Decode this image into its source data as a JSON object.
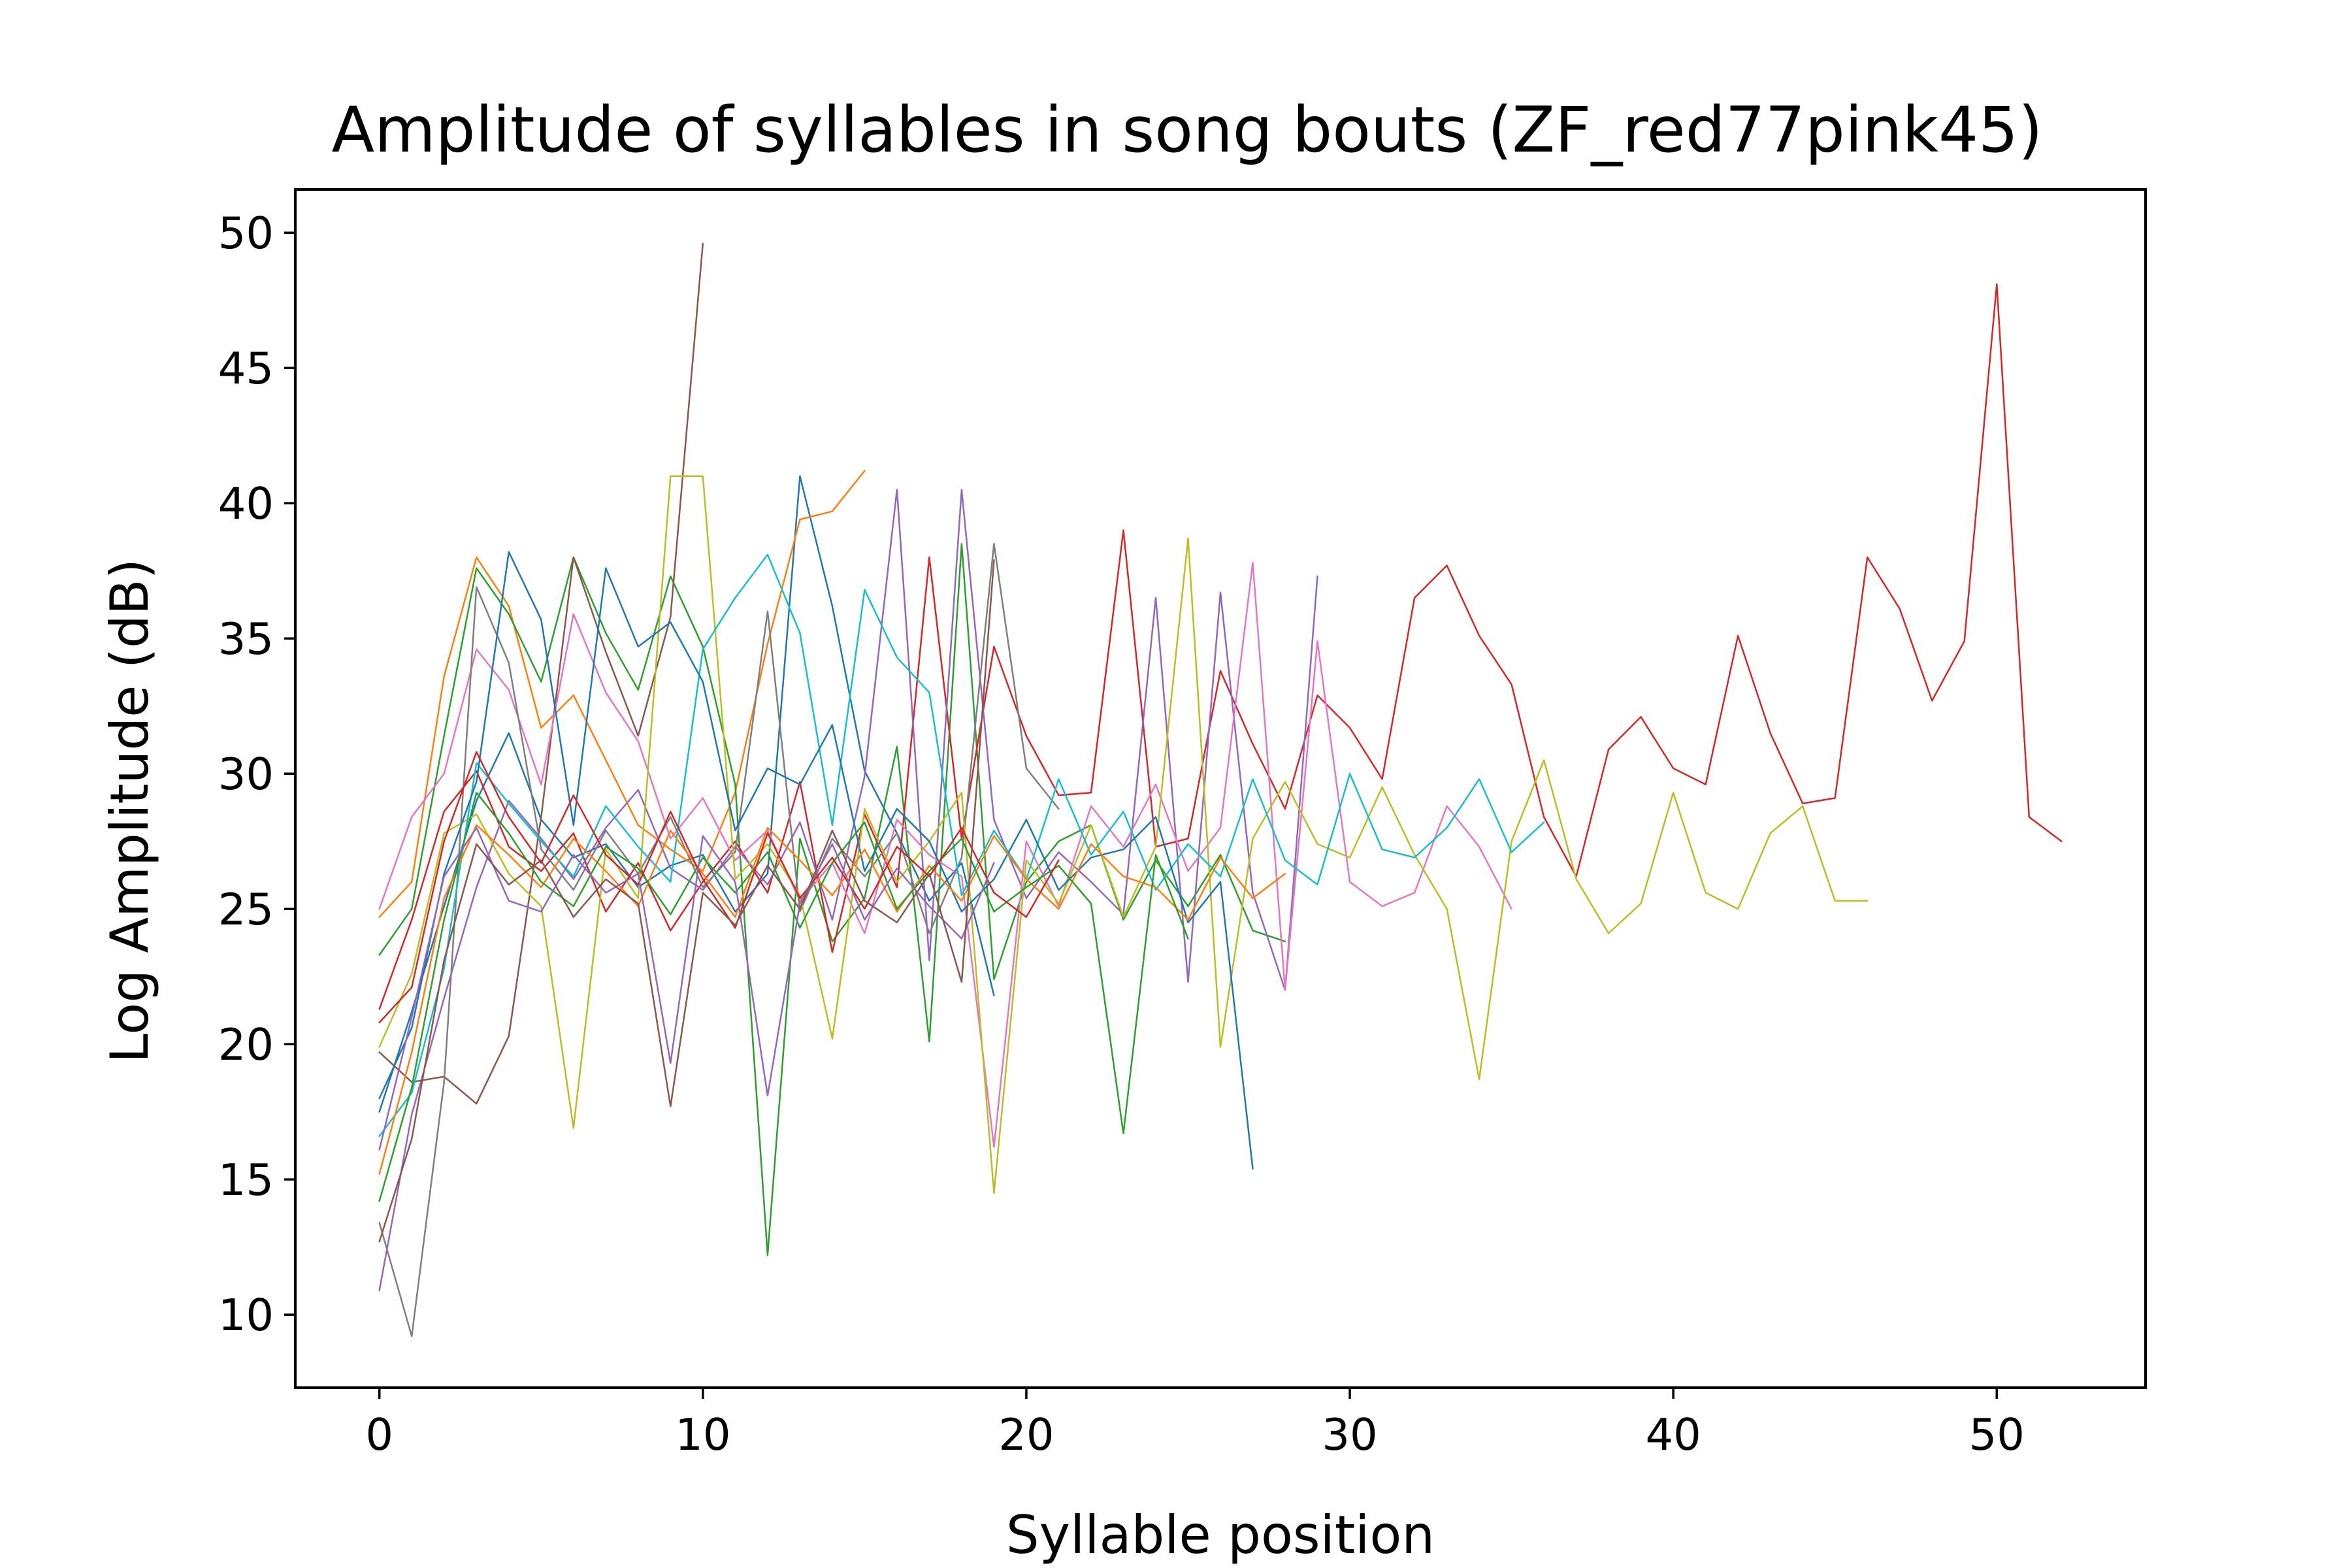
{
  "chart_data": {
    "type": "line",
    "title": "Amplitude of syllables in song bouts (ZF_red77pink45)",
    "xlabel": "Syllable position",
    "ylabel": "Log Amplitude (dB)",
    "xlim": [
      -2.6,
      54.6
    ],
    "ylim": [
      7.3,
      51.6
    ],
    "xticks": [
      0,
      10,
      20,
      30,
      40,
      50
    ],
    "yticks": [
      10,
      15,
      20,
      25,
      30,
      35,
      40,
      45,
      50
    ],
    "grid": false,
    "legend": "none",
    "colors": [
      "#1f77b4",
      "#ff7f0e",
      "#2ca02c",
      "#d62728",
      "#9467bd",
      "#8c564b",
      "#e377c2",
      "#7f7f7f",
      "#bcbd22",
      "#17becf"
    ],
    "series": [
      {
        "values": [
          17.5,
          21.2,
          25.1,
          29.0,
          31.5,
          28.3,
          26.9,
          27.4,
          25.8,
          26.6,
          27.0,
          24.9,
          26.3,
          41.0,
          36.2,
          30.1,
          27.8,
          25.3,
          26.7,
          21.8
        ]
      },
      {
        "values": [
          24.7,
          26.0,
          33.6,
          38.0,
          36.2,
          31.7,
          32.9,
          30.5,
          28.1,
          27.2,
          26.4,
          29.3,
          34.8,
          39.4,
          39.7,
          41.2
        ]
      },
      {
        "values": [
          23.3,
          25.0,
          31.4,
          37.6,
          35.9,
          33.4,
          38.0,
          35.2,
          33.1,
          37.3,
          34.7,
          29.6,
          12.2,
          27.6,
          23.8,
          25.4,
          31.0,
          20.1,
          38.5,
          22.4,
          26.0,
          27.5,
          28.1,
          24.6,
          26.8,
          25.1,
          27.0,
          24.2,
          23.8
        ]
      },
      {
        "values": [
          21.3,
          24.6,
          28.6,
          30.1,
          27.3,
          26.4,
          27.8,
          24.9,
          26.7,
          24.2,
          26.0,
          27.5,
          25.6,
          29.7,
          23.4,
          28.5,
          25.8,
          38.0,
          27.6,
          34.7,
          31.4,
          29.2,
          29.3,
          39.0,
          27.3,
          27.6,
          33.8,
          31.1,
          28.7,
          32.9,
          31.7,
          29.8,
          36.5,
          37.7,
          35.1,
          33.3,
          28.4,
          26.2,
          30.9,
          32.1,
          30.2,
          29.6,
          35.1,
          31.5,
          28.9,
          29.1,
          38.0,
          36.1,
          32.7,
          34.9,
          48.1,
          28.4,
          27.5
        ]
      },
      {
        "values": [
          10.9,
          17.4,
          21.7,
          25.8,
          29.0,
          27.6,
          26.1,
          28.0,
          29.4,
          26.5,
          25.7,
          27.3,
          25.9,
          28.2,
          24.6,
          29.9,
          40.5,
          23.1,
          40.5,
          28.3,
          25.4,
          27.1,
          26.0,
          24.8,
          36.5,
          22.3,
          36.7,
          25.6,
          22.0,
          37.3
        ]
      },
      {
        "values": [
          19.7,
          18.6,
          18.8,
          17.8,
          20.3,
          28.4,
          38.0,
          34.5,
          31.4,
          35.8,
          49.6
        ]
      },
      {
        "values": [
          25.0,
          28.4,
          30.0,
          34.6,
          33.1,
          29.6,
          35.9,
          33.0,
          31.2,
          27.6,
          29.1,
          26.8,
          27.9,
          25.3,
          26.7,
          24.1,
          28.3,
          27.0,
          26.2,
          16.2,
          27.5,
          25.1,
          28.8,
          27.3,
          29.6,
          26.4,
          28.0,
          37.8,
          22.0,
          34.9,
          26.0,
          25.1,
          25.6,
          28.8,
          27.3,
          25.0
        ]
      },
      {
        "values": [
          13.4,
          9.2,
          18.6,
          36.9,
          34.1,
          27.2,
          25.7,
          27.9,
          26.3,
          28.4,
          25.8,
          27.1,
          36.0,
          24.9,
          27.6,
          26.2,
          27.8,
          24.1,
          26.9,
          38.5,
          30.2,
          28.7
        ]
      },
      {
        "values": [
          19.9,
          22.6,
          27.8,
          28.5,
          26.3,
          25.1,
          16.9,
          27.2,
          25.4,
          41.0,
          41.0,
          26.1,
          27.4,
          25.5,
          20.2,
          28.7,
          26.0,
          27.5,
          29.3,
          14.5,
          26.8,
          25.2,
          28.1,
          24.7,
          27.3,
          38.7,
          19.9,
          27.6,
          29.7,
          27.4,
          26.9,
          29.5,
          27.0,
          25.0,
          18.7,
          27.5,
          30.5,
          26.1,
          24.1,
          25.2,
          29.3,
          25.6,
          25.0,
          27.8,
          28.8,
          25.3,
          25.3
        ]
      },
      {
        "values": [
          16.6,
          18.2,
          22.8,
          30.4,
          28.9,
          27.5,
          26.2,
          28.8,
          27.3,
          26.0,
          34.6,
          36.5,
          38.1,
          35.2,
          28.1,
          36.8,
          34.3,
          33.0,
          25.5,
          27.9,
          26.1,
          29.8,
          27.0,
          28.6,
          25.7,
          27.4,
          26.2,
          29.8,
          26.8,
          25.9,
          30.0,
          27.2,
          26.9,
          28.0,
          29.8,
          27.1,
          28.2
        ]
      },
      {
        "values": [
          18.0,
          20.6,
          26.3,
          29.7,
          38.2,
          35.7,
          28.1,
          37.6,
          34.7,
          35.6,
          33.4,
          27.9,
          30.2,
          29.6,
          31.8,
          26.4,
          28.7,
          27.5,
          24.9,
          26.1,
          28.3,
          25.7,
          26.9,
          27.2,
          28.4,
          24.5,
          26.0,
          15.4
        ]
      },
      {
        "values": [
          15.2,
          19.7,
          25.4,
          28.1,
          27.0,
          25.8,
          27.6,
          26.4,
          25.1,
          27.9,
          26.3,
          24.7,
          28.0,
          26.8,
          25.5,
          27.2,
          24.9,
          26.6,
          25.3,
          27.7,
          26.1,
          25.0,
          27.4,
          26.2,
          25.8,
          24.6,
          26.9,
          25.4,
          26.3
        ]
      },
      {
        "values": [
          14.2,
          18.4,
          24.6,
          29.3,
          27.8,
          26.0,
          25.1,
          27.3,
          26.5,
          24.8,
          26.9,
          25.6,
          27.1,
          24.3,
          26.7,
          28.2,
          25.0,
          26.4,
          27.6,
          24.9,
          25.8,
          26.6,
          25.2,
          16.7,
          27.0,
          23.9
        ]
      },
      {
        "values": [
          20.8,
          22.1,
          27.5,
          30.8,
          28.4,
          26.7,
          29.2,
          27.0,
          25.9,
          28.6,
          26.1,
          24.3,
          27.8,
          25.4,
          26.9,
          25.0,
          27.3,
          26.2,
          28.0,
          25.6,
          24.7,
          26.8
        ]
      },
      {
        "values": [
          16.1,
          21.0,
          26.2,
          28.0,
          25.3,
          24.9,
          27.0,
          25.6,
          26.3,
          19.3,
          27.7,
          26.0,
          18.1,
          25.2,
          27.4,
          24.6,
          26.5,
          25.1,
          23.9,
          26.7
        ]
      },
      {
        "values": [
          12.7,
          16.5,
          23.1,
          27.4,
          25.9,
          26.8,
          24.7,
          26.1,
          25.2,
          17.7,
          25.6,
          24.4,
          26.6,
          25.0,
          27.9,
          25.3,
          24.5,
          26.3,
          22.3,
          37.9
        ]
      }
    ]
  }
}
